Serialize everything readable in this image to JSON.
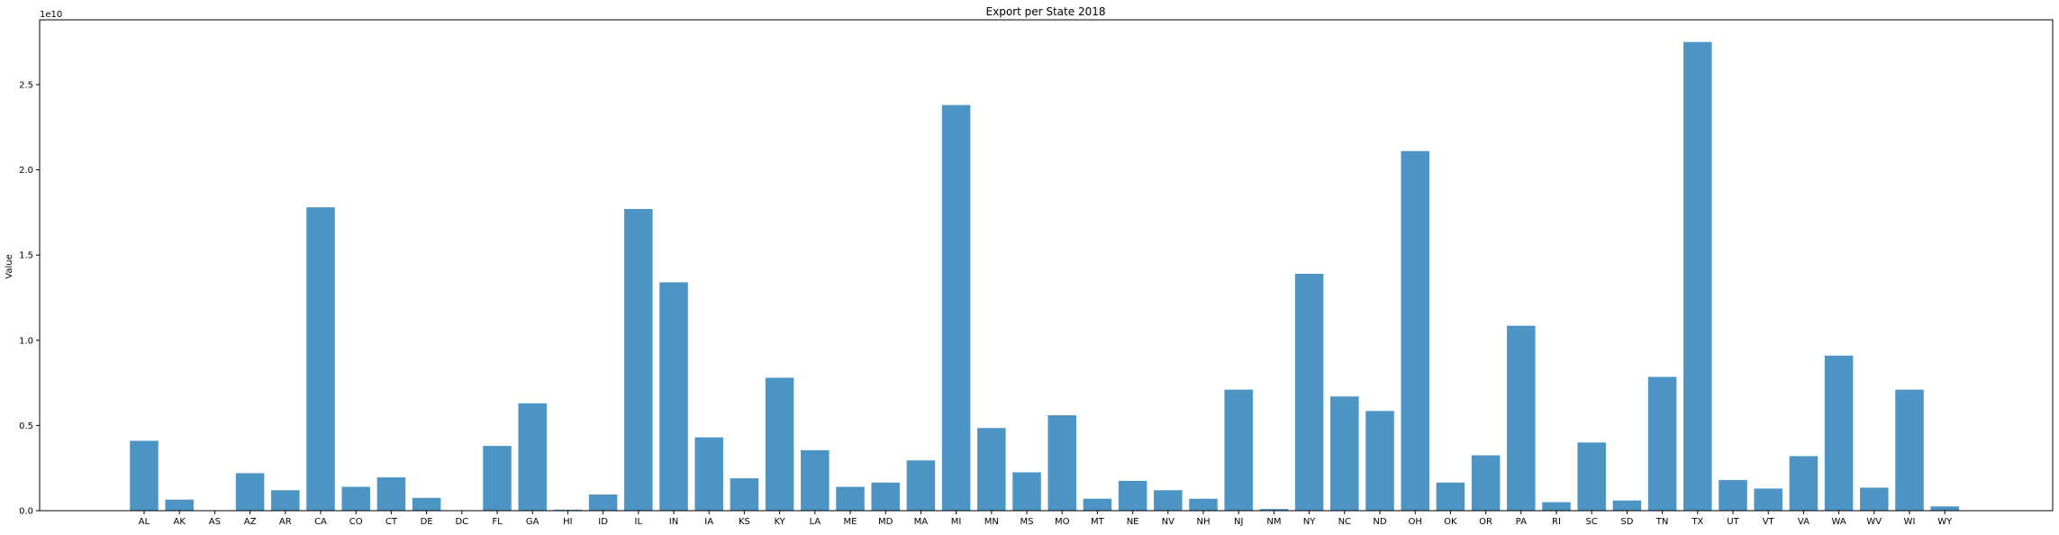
{
  "chart_data": {
    "type": "bar",
    "title": "Export per State 2018",
    "xlabel": "",
    "ylabel": "Value",
    "y_offset_label": "1e10",
    "ylim": [
      0,
      28.8
    ],
    "yticks": [
      0.0,
      0.5,
      1.0,
      1.5,
      2.0,
      2.5
    ],
    "ytick_labels": [
      "0.0",
      "0.5",
      "1.0",
      "1.5",
      "2.0",
      "2.5"
    ],
    "value_unit": "1e9",
    "grid": false,
    "bar_color": "#4c94c4",
    "categories": [
      "AL",
      "AK",
      "AS",
      "AZ",
      "AR",
      "CA",
      "CO",
      "CT",
      "DE",
      "DC",
      "FL",
      "GA",
      "HI",
      "ID",
      "IL",
      "IN",
      "IA",
      "KS",
      "KY",
      "LA",
      "ME",
      "MD",
      "MA",
      "MI",
      "MN",
      "MS",
      "MO",
      "MT",
      "NE",
      "NV",
      "NH",
      "NJ",
      "NM",
      "NY",
      "NC",
      "ND",
      "OH",
      "OK",
      "OR",
      "PA",
      "RI",
      "SC",
      "SD",
      "TN",
      "TX",
      "UT",
      "VT",
      "VA",
      "WA",
      "WV",
      "WI",
      "WY"
    ],
    "values": [
      4.1,
      0.65,
      0.0,
      2.2,
      1.2,
      17.8,
      1.4,
      1.95,
      0.75,
      0.0,
      3.8,
      6.3,
      0.06,
      0.95,
      17.7,
      13.4,
      4.3,
      1.9,
      7.8,
      3.55,
      1.4,
      1.65,
      2.95,
      23.8,
      4.85,
      2.25,
      5.6,
      0.7,
      1.75,
      1.2,
      0.7,
      7.1,
      0.1,
      13.9,
      6.7,
      5.85,
      21.1,
      1.65,
      3.25,
      10.85,
      0.5,
      4.0,
      0.6,
      7.85,
      27.5,
      1.8,
      1.3,
      3.2,
      9.1,
      1.35,
      7.1,
      0.25
    ]
  }
}
